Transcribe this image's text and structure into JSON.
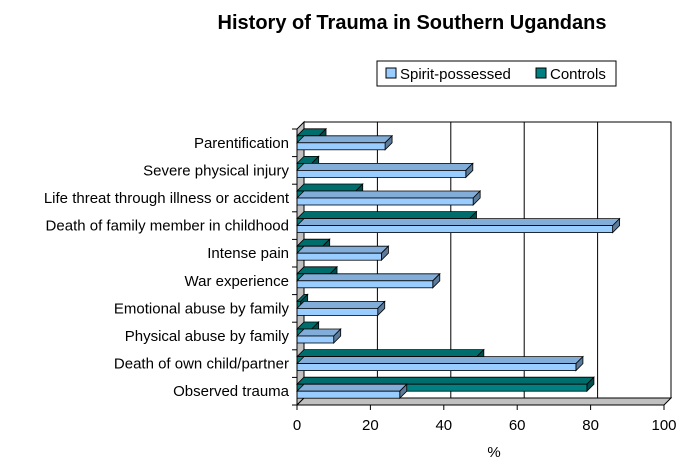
{
  "chart_data": {
    "type": "bar",
    "orientation": "horizontal",
    "title": "History of Trauma in Southern Ugandans",
    "xlabel": "%",
    "ylabel": "",
    "xlim": [
      0,
      100
    ],
    "xticks": [
      0,
      20,
      40,
      60,
      80,
      100
    ],
    "grid": "vertical gridlines",
    "legend_position": "top-right",
    "categories": [
      "Parentification",
      "Severe physical injury",
      "Life threat through illness or accident",
      "Death of family member in childhood",
      "Intense pain",
      "War experience",
      "Emotional abuse by family",
      "Physical abuse by family",
      "Death of own child/partner",
      "Observed trauma"
    ],
    "series": [
      {
        "name": "Spirit-possessed",
        "color": "#99ccff",
        "values": [
          24,
          46,
          48,
          86,
          23,
          37,
          22,
          10,
          76,
          28
        ]
      },
      {
        "name": "Controls",
        "color": "#008080",
        "values": [
          6,
          4,
          16,
          47,
          7,
          9,
          1,
          4,
          49,
          79
        ]
      }
    ]
  }
}
